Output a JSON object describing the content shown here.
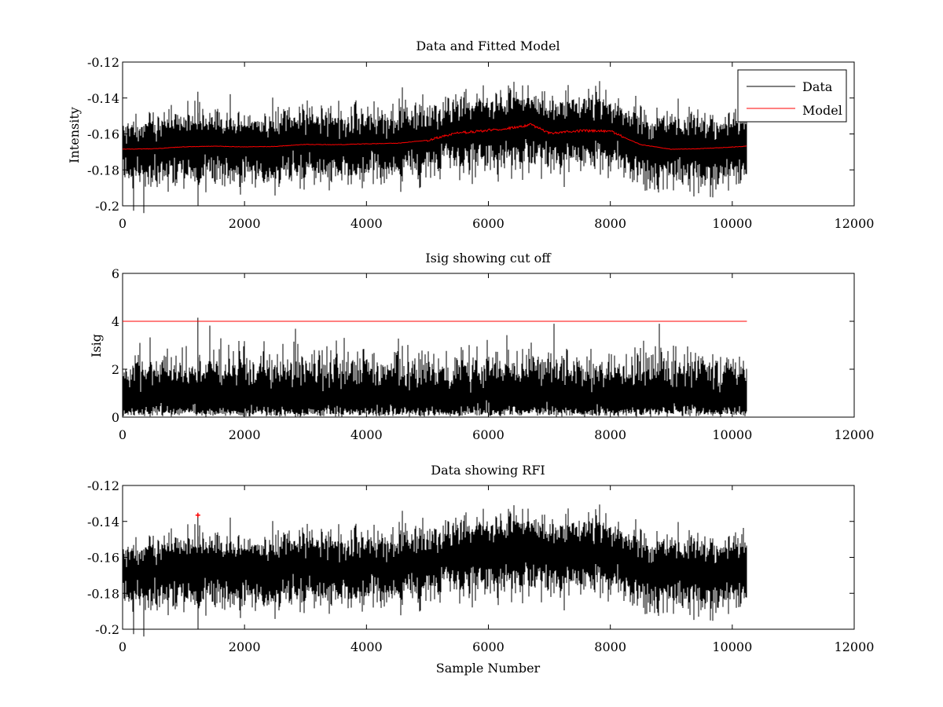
{
  "chart_data": [
    {
      "type": "line",
      "title": "Data and Fitted Model",
      "xlabel": "",
      "ylabel": "Intensity",
      "xlim": [
        0,
        12000
      ],
      "ylim": [
        -0.2,
        -0.12
      ],
      "xticks": [
        "0",
        "2000",
        "4000",
        "6000",
        "8000",
        "10000",
        "12000"
      ],
      "yticks": [
        "-0.12",
        "-0.14",
        "-0.16",
        "-0.18",
        "-0.2"
      ],
      "legend": {
        "position": "top-right",
        "entries": [
          "Data",
          "Model"
        ]
      },
      "series": [
        {
          "name": "Data",
          "color": "#000000",
          "x_end": 10240,
          "noise_std": 0.0085,
          "peak_spike": {
            "x": 1235,
            "y": -0.1365
          }
        },
        {
          "name": "Model",
          "color": "#ff0000",
          "x": [
            0,
            500,
            1000,
            1500,
            2000,
            2500,
            3000,
            3500,
            4000,
            4500,
            5000,
            5500,
            6000,
            6500,
            6700,
            7000,
            7500,
            8000,
            8500,
            9000,
            9500,
            10240
          ],
          "values": [
            -0.1685,
            -0.1683,
            -0.1672,
            -0.1668,
            -0.1672,
            -0.167,
            -0.1658,
            -0.166,
            -0.1655,
            -0.1652,
            -0.1635,
            -0.1595,
            -0.158,
            -0.1562,
            -0.1548,
            -0.1595,
            -0.1582,
            -0.1585,
            -0.166,
            -0.1685,
            -0.1682,
            -0.1668
          ]
        }
      ]
    },
    {
      "type": "line",
      "title": "Isig showing cut off",
      "xlabel": "",
      "ylabel": "Isig",
      "xlim": [
        0,
        12000
      ],
      "ylim": [
        0,
        6
      ],
      "xticks": [
        "0",
        "2000",
        "4000",
        "6000",
        "8000",
        "10000",
        "12000"
      ],
      "yticks": [
        "6",
        "4",
        "2",
        "0"
      ],
      "series": [
        {
          "name": "Isig",
          "color": "#000000",
          "x_end": 10240,
          "spike": {
            "x": 1235,
            "y": 4.15
          }
        },
        {
          "name": "Cut off",
          "color": "#ff0000",
          "x": [
            0,
            10240
          ],
          "values": [
            4,
            4
          ]
        }
      ]
    },
    {
      "type": "line",
      "title": "Data showing RFI",
      "xlabel": "Sample Number",
      "ylabel": "",
      "xlim": [
        0,
        12000
      ],
      "ylim": [
        -0.2,
        -0.12
      ],
      "xticks": [
        "0",
        "2000",
        "4000",
        "6000",
        "8000",
        "10000",
        "12000"
      ],
      "yticks": [
        "-0.12",
        "-0.14",
        "-0.16",
        "-0.18",
        "-0.2"
      ],
      "series": [
        {
          "name": "Data",
          "color": "#000000",
          "x_end": 10240
        },
        {
          "name": "RFI",
          "color": "#ff0000",
          "marker": "+",
          "points": [
            {
              "x": 1235,
              "y": -0.1365
            }
          ]
        }
      ]
    }
  ]
}
